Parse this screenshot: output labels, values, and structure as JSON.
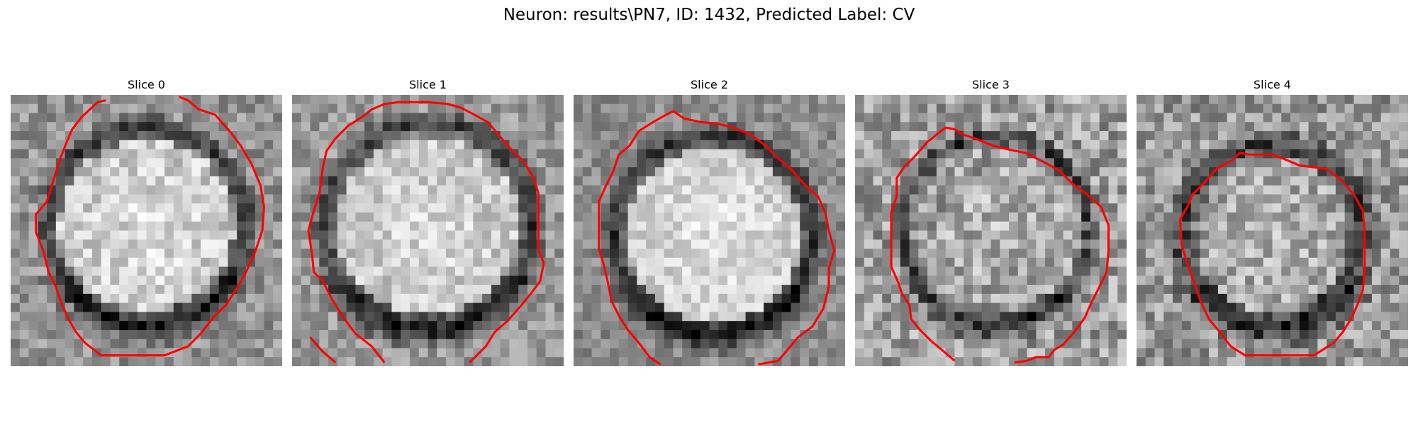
{
  "title": "Neuron: results\\PN7, ID: 1432, Predicted Label: CV",
  "panels": [
    {
      "title": "Slice 0",
      "seed": 11
    },
    {
      "title": "Slice 1",
      "seed": 23
    },
    {
      "title": "Slice 2",
      "seed": 37
    },
    {
      "title": "Slice 3",
      "seed": 51
    },
    {
      "title": "Slice 4",
      "seed": 67
    }
  ],
  "colors": {
    "contour": "#ff0000",
    "background": "#ffffff"
  },
  "colormap": "gray",
  "grid_cells": 30
}
